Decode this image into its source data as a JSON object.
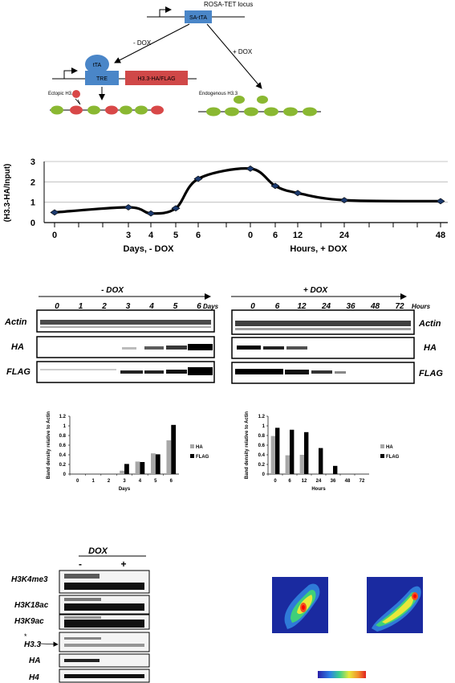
{
  "diagram": {
    "locus_label": "ROSA-TET locus",
    "sa_tta": "SA-tTA",
    "minus_dox": "- DOX",
    "plus_dox": "+ DOX",
    "tta": "tTA",
    "tre": "TRE",
    "h33_tag": "H3.3-HA/FLAG",
    "ectopic": "Ectopic H3.3",
    "endogenous": "Endogenous H3.3",
    "colors": {
      "box_blue": "#4a86c8",
      "box_red": "#d04848",
      "nuc_green": "#8ab832",
      "nuc_red": "#d84848"
    }
  },
  "line_chart": {
    "type": "line",
    "ylabel": "(H3.3-HA/Input)",
    "y_ticks": [
      "0",
      "1",
      "2",
      "3"
    ],
    "ylim": [
      0,
      3
    ],
    "x_tick_labels": [
      "0",
      "3",
      "4",
      "5",
      "6",
      "0",
      "6",
      "12",
      "24",
      "48"
    ],
    "x_group_labels": [
      "Days, - DOX",
      "Hours, + DOX"
    ],
    "points": [
      {
        "x": "0",
        "y": 0.5
      },
      {
        "x": "3",
        "y": 0.75
      },
      {
        "x": "4",
        "y": 0.45
      },
      {
        "x": "5",
        "y": 0.7
      },
      {
        "x": "6",
        "y": 2.15
      },
      {
        "x": "0",
        "y": 2.65
      },
      {
        "x": "6",
        "y": 1.8
      },
      {
        "x": "12",
        "y": 1.45
      },
      {
        "x": "24",
        "y": 1.1
      },
      {
        "x": "48",
        "y": 1.05
      }
    ]
  },
  "blots_top": {
    "left_header": "- DOX",
    "left_lanes": [
      "0",
      "1",
      "2",
      "3",
      "4",
      "5",
      "6"
    ],
    "left_unit": "Days",
    "right_header": "+ DOX",
    "right_lanes": [
      "0",
      "6",
      "12",
      "24",
      "36",
      "48",
      "72"
    ],
    "right_unit": "Hours",
    "rows": [
      "Actin",
      "HA",
      "FLAG"
    ]
  },
  "chart_data": [
    {
      "type": "bar",
      "ylabel": "Band density relative to Actin",
      "xlabel": "Days",
      "categories": [
        "0",
        "1",
        "2",
        "3",
        "4",
        "5",
        "6"
      ],
      "ylim": [
        0,
        1.2
      ],
      "y_ticks": [
        "0",
        "0.2",
        "0.4",
        "0.6",
        "0.8",
        "1",
        "1.2"
      ],
      "series": [
        {
          "name": "HA",
          "color": "#a8a8a8",
          "values": [
            0,
            0,
            0,
            0.07,
            0.26,
            0.43,
            0.7
          ]
        },
        {
          "name": "FLAG",
          "color": "#000000",
          "values": [
            0,
            0,
            0,
            0.21,
            0.25,
            0.41,
            1.02
          ]
        }
      ]
    },
    {
      "type": "bar",
      "ylabel": "Band density relative to Actin",
      "xlabel": "Hours",
      "categories": [
        "0",
        "6",
        "12",
        "24",
        "36",
        "48",
        "72"
      ],
      "ylim": [
        0,
        1.2
      ],
      "y_ticks": [
        "0",
        "0.2",
        "0.4",
        "0.6",
        "0.8",
        "1",
        "1.2"
      ],
      "series": [
        {
          "name": "HA",
          "color": "#a8a8a8",
          "values": [
            0.79,
            0.39,
            0.4,
            0.02,
            0,
            0,
            0
          ]
        },
        {
          "name": "FLAG",
          "color": "#000000",
          "values": [
            0.96,
            0.92,
            0.87,
            0.54,
            0.17,
            0,
            0
          ]
        }
      ]
    }
  ],
  "blots_bottom": {
    "header": "DOX",
    "lanes": [
      "-",
      "+"
    ],
    "rows": [
      "H3K4me3",
      "H3K18ac",
      "H3K9ac",
      "H3.3",
      "HA",
      "H4"
    ],
    "star": "*"
  }
}
